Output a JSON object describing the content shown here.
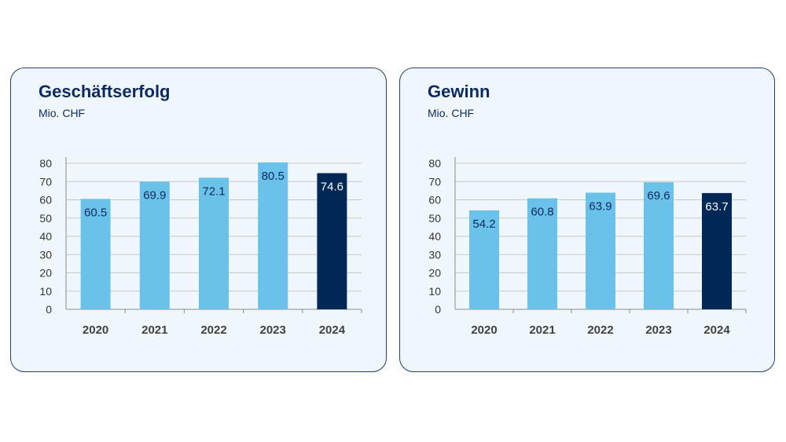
{
  "chart_data": [
    {
      "type": "bar",
      "title": "Geschäftserfolg",
      "subtitle": "Mio. CHF",
      "categories": [
        "2020",
        "2021",
        "2022",
        "2023",
        "2024"
      ],
      "values": [
        60.5,
        69.9,
        72.1,
        80.5,
        74.6
      ],
      "ylim": [
        0,
        80
      ],
      "yticks": [
        0,
        10,
        20,
        30,
        40,
        50,
        60,
        70,
        80
      ],
      "grid": true,
      "colors": [
        "#6ac2ea",
        "#6ac2ea",
        "#6ac2ea",
        "#6ac2ea",
        "#002856"
      ],
      "label_colors": [
        "#0d2a5e",
        "#0d2a5e",
        "#0d2a5e",
        "#0d2a5e",
        "#ffffff"
      ]
    },
    {
      "type": "bar",
      "title": "Gewinn",
      "subtitle": "Mio. CHF",
      "categories": [
        "2020",
        "2021",
        "2022",
        "2023",
        "2024"
      ],
      "values": [
        54.2,
        60.8,
        63.9,
        69.6,
        63.7
      ],
      "ylim": [
        0,
        80
      ],
      "yticks": [
        0,
        10,
        20,
        30,
        40,
        50,
        60,
        70,
        80
      ],
      "grid": true,
      "colors": [
        "#6ac2ea",
        "#6ac2ea",
        "#6ac2ea",
        "#6ac2ea",
        "#002856"
      ],
      "label_colors": [
        "#0d2a5e",
        "#0d2a5e",
        "#0d2a5e",
        "#0d2a5e",
        "#ffffff"
      ]
    }
  ]
}
